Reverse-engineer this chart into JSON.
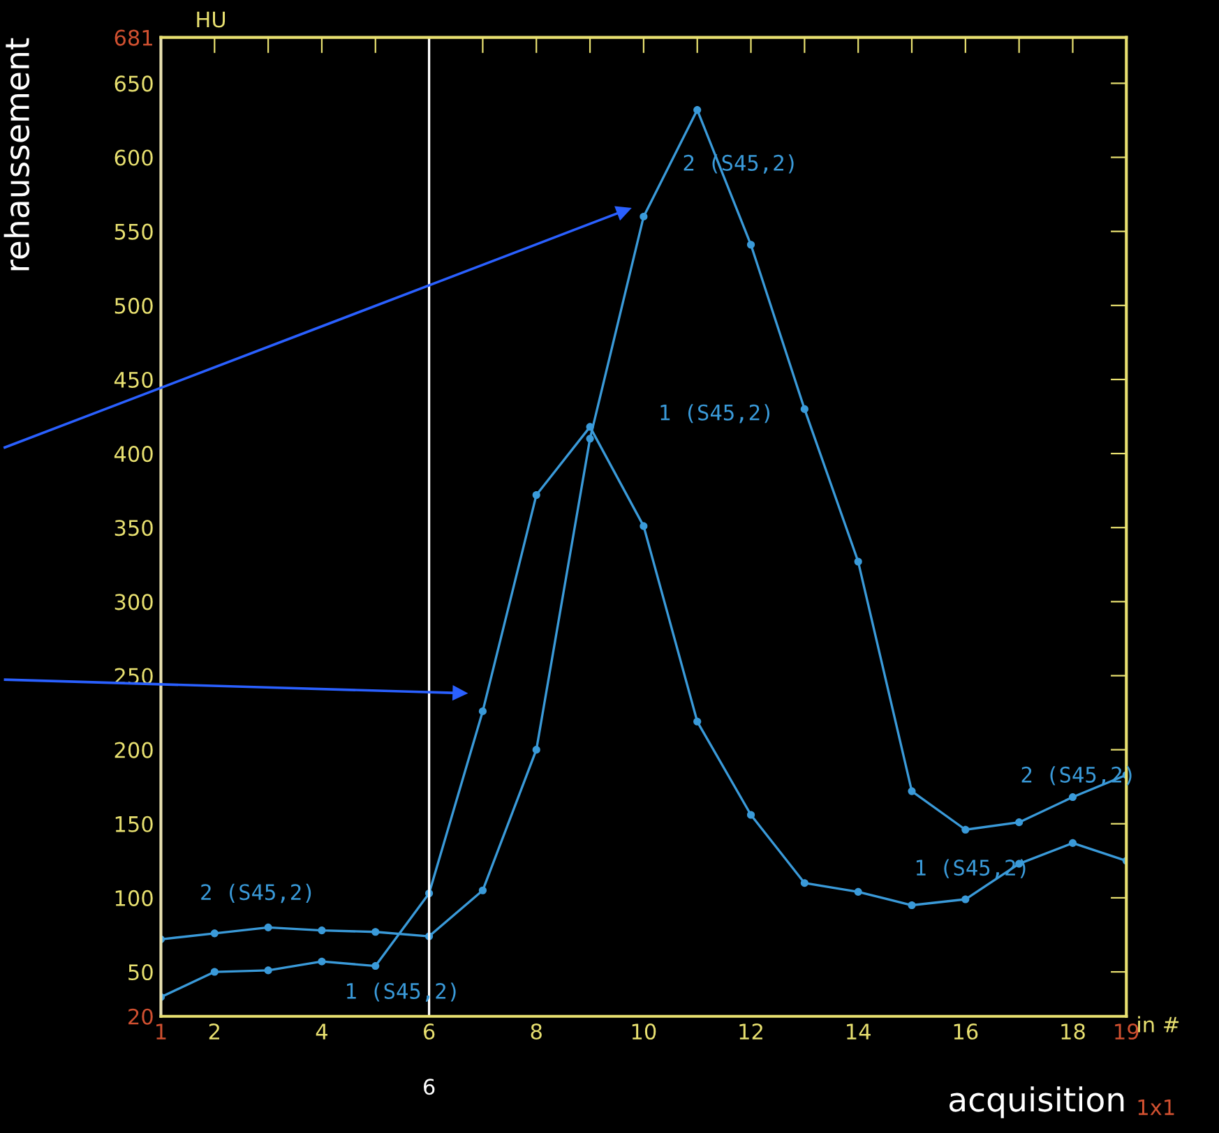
{
  "chart_data": {
    "type": "line",
    "xlabel": "acquisition",
    "ylabel": "rehaussement",
    "x": [
      1,
      2,
      3,
      4,
      5,
      6,
      7,
      8,
      9,
      10,
      11,
      12,
      13,
      14,
      15,
      16,
      17,
      18,
      19
    ],
    "series": [
      {
        "color": "#3a9ad9",
        "values": [
          33,
          50,
          51,
          57,
          54,
          103,
          226,
          372,
          418,
          351,
          219,
          156,
          110,
          104,
          95,
          99,
          123,
          137,
          125
        ]
      },
      {
        "color": "#3a9ad9",
        "values": [
          72,
          76,
          80,
          78,
          77,
          74,
          105,
          200,
          410,
          560,
          632,
          541,
          430,
          327,
          172,
          146,
          151,
          168,
          183
        ]
      }
    ],
    "xlim": [
      1,
      19
    ],
    "ylim": [
      20,
      681
    ],
    "xticks": [
      1,
      2,
      {
        "value": 3,
        "label": null
      },
      4,
      {
        "value": 5,
        "label": null
      },
      6,
      {
        "value": 7,
        "label": null
      },
      8,
      {
        "value": 9,
        "label": null
      },
      10,
      {
        "value": 11,
        "label": null
      },
      12,
      {
        "value": 13,
        "label": null
      },
      14,
      {
        "value": 15,
        "label": null
      },
      16,
      {
        "value": 17,
        "label": null
      },
      18,
      19
    ],
    "yticks": [
      20,
      50,
      100,
      150,
      200,
      250,
      300,
      350,
      400,
      450,
      500,
      550,
      600,
      650,
      681
    ],
    "ref_lines": [
      {
        "axis": "x",
        "value": 6,
        "label": "6",
        "color": "#ffffff"
      }
    ],
    "marker": "circle",
    "grid": false,
    "legend": false,
    "annotations": [
      "2 (S45,2)",
      "1 (S45,2)",
      "2 (S45,2)",
      "1 (S45,2)",
      "2 (S45,2)",
      "1 (S45,2)",
      "HU",
      "in #",
      "1x1"
    ]
  }
}
